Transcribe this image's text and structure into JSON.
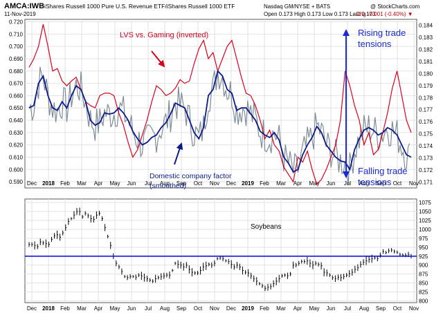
{
  "header": {
    "symbol": "AMCA:IWB",
    "description": "iShares Russell 1000 Pure U.S. Revenue ETF/iShares Russell 1000 ETF",
    "exchange": "Nasdaq GM/NYSE + BATS",
    "credit": "@ StockCharts.com",
    "date": "11-Nov-2019",
    "quote": "Open 0.173  High 0.173  Low 0.173  Last 0.173",
    "change": "Chg -0.001 (-0.40%) ▼"
  },
  "colors": {
    "red_series": "#d9001b",
    "navy_series": "#0b1a8a",
    "gray_series": "#7d8b96",
    "annotation_blue": "#1a2ad6",
    "annotation_red": "#d9001b",
    "gridline": "#e2e2e2",
    "support_line": "#0000e0"
  },
  "annotations": {
    "lvs": "LVS vs. Gaming (inverted)",
    "domestic_line1": "Domestic company factor",
    "domestic_line2": "(smoothed)",
    "rising_line1": "Rising trade",
    "rising_line2": "tensions",
    "falling_line1": "Falling trade",
    "falling_line2": "tensions",
    "soybeans": "Soybeans"
  },
  "chart_data": [
    {
      "type": "line",
      "x_tick_labels": [
        "Dec",
        "2018",
        "Feb",
        "Mar",
        "Apr",
        "May",
        "Jun",
        "Jul",
        "Aug",
        "Sep",
        "Oct",
        "Nov",
        "Dec",
        "2019",
        "Feb",
        "Mar",
        "Apr",
        "May",
        "Jun",
        "Jul",
        "Aug",
        "Sep",
        "Oct",
        "Nov"
      ],
      "y_left_ticks": [
        "0.720",
        "0.710",
        "0.700",
        "0.690",
        "0.680",
        "0.670",
        "0.660",
        "0.650",
        "0.640",
        "0.630",
        "0.620",
        "0.610",
        "0.600",
        "0.590"
      ],
      "y_right_ticks": [
        "0.184",
        "0.183",
        "0.182",
        "0.181",
        "0.180",
        "0.179",
        "0.178",
        "0.177",
        "0.176",
        "0.175",
        "0.174",
        "0.173",
        "0.172",
        "0.171"
      ],
      "y_left_lim": [
        0.585,
        0.722
      ],
      "y_right_lim": [
        0.1705,
        0.1845
      ],
      "series": [
        {
          "name": "LVS vs. Gaming (inverted)",
          "axis": "left",
          "values": [
            0.683,
            0.69,
            0.7,
            0.718,
            0.7,
            0.68,
            0.682,
            0.672,
            0.668,
            0.672,
            0.675,
            0.665,
            0.655,
            0.652,
            0.65,
            0.66,
            0.662,
            0.662,
            0.66,
            0.646,
            0.636,
            0.622,
            0.61,
            0.616,
            0.628,
            0.64,
            0.655,
            0.668,
            0.665,
            0.66,
            0.662,
            0.666,
            0.673,
            0.67,
            0.672,
            0.686,
            0.698,
            0.705,
            0.69,
            0.695,
            0.68,
            0.69,
            0.7,
            0.705,
            0.69,
            0.675,
            0.662,
            0.66,
            0.652,
            0.64,
            0.625,
            0.632,
            0.62,
            0.615,
            0.602,
            0.596,
            0.59,
            0.61,
            0.606,
            0.615,
            0.6,
            0.588,
            0.592,
            0.6,
            0.61,
            0.62,
            0.64,
            0.68,
            0.668,
            0.652,
            0.64,
            0.62,
            0.63,
            0.612,
            0.616,
            0.63,
            0.646,
            0.666,
            0.68,
            0.66,
            0.64,
            0.63
          ]
        },
        {
          "name": "Domestic company factor (smoothed)",
          "axis": "left",
          "values": [
            0.65,
            0.652,
            0.67,
            0.676,
            0.66,
            0.65,
            0.648,
            0.655,
            0.65,
            0.66,
            0.668,
            0.665,
            0.655,
            0.64,
            0.636,
            0.638,
            0.646,
            0.645,
            0.646,
            0.65,
            0.646,
            0.64,
            0.631,
            0.625,
            0.62,
            0.622,
            0.626,
            0.628,
            0.634,
            0.638,
            0.645,
            0.654,
            0.652,
            0.65,
            0.64,
            0.63,
            0.625,
            0.634,
            0.66,
            0.665,
            0.68,
            0.676,
            0.665,
            0.662,
            0.648,
            0.65,
            0.65,
            0.645,
            0.64,
            0.631,
            0.628,
            0.626,
            0.63,
            0.624,
            0.61,
            0.605,
            0.598,
            0.6,
            0.612,
            0.62,
            0.626,
            0.635,
            0.63,
            0.62,
            0.615,
            0.61,
            0.607,
            0.606,
            0.6,
            0.616,
            0.625,
            0.632,
            0.634,
            0.632,
            0.628,
            0.63,
            0.634,
            0.632,
            0.628,
            0.62,
            0.612,
            0.61
          ]
        }
      ]
    },
    {
      "type": "bar",
      "title": "Soybeans",
      "y_ticks": [
        "1075",
        "1050",
        "1025",
        "1000",
        "975",
        "950",
        "925",
        "900",
        "875",
        "850",
        "825",
        "800"
      ],
      "ylim": [
        795,
        1085
      ],
      "x_tick_labels": [
        "Dec",
        "2018",
        "Feb",
        "Mar",
        "Apr",
        "May",
        "Jun",
        "Jul",
        "Aug",
        "Sep",
        "Oct",
        "Nov",
        "Dec",
        "2019",
        "Feb",
        "Mar",
        "Apr",
        "May",
        "Jun",
        "Jul",
        "Aug",
        "Sep",
        "Oct",
        "Nov"
      ],
      "reference_line": 925,
      "values": [
        958,
        958,
        955,
        952,
        965,
        962,
        960,
        958,
        972,
        982,
        985,
        978,
        990,
        1005,
        1022,
        1030,
        1040,
        1050,
        1050,
        1035,
        1045,
        1038,
        1030,
        1028,
        1040,
        1045,
        1030,
        1005,
        980,
        955,
        925,
        905,
        895,
        882,
        868,
        865,
        868,
        868,
        866,
        872,
        870,
        865,
        862,
        858,
        855,
        862,
        865,
        868,
        870,
        872,
        872,
        885,
        905,
        902,
        900,
        895,
        900,
        888,
        880,
        878,
        878,
        885,
        895,
        898,
        902,
        900,
        905,
        918,
        920,
        918,
        912,
        910,
        902,
        895,
        900,
        895,
        885,
        880,
        878,
        870,
        862,
        855,
        848,
        842,
        835,
        838,
        840,
        848,
        855,
        862,
        870,
        872,
        870,
        875,
        900,
        900,
        905,
        910,
        910,
        912,
        905,
        900,
        905,
        902,
        898,
        880,
        878,
        872,
        865,
        862,
        866,
        865,
        868,
        872,
        876,
        880,
        888,
        893,
        902,
        908,
        912,
        916,
        918,
        920,
        918,
        928,
        938,
        935,
        940,
        942,
        938,
        936,
        930,
        928,
        928,
        930,
        925
      ]
    }
  ]
}
